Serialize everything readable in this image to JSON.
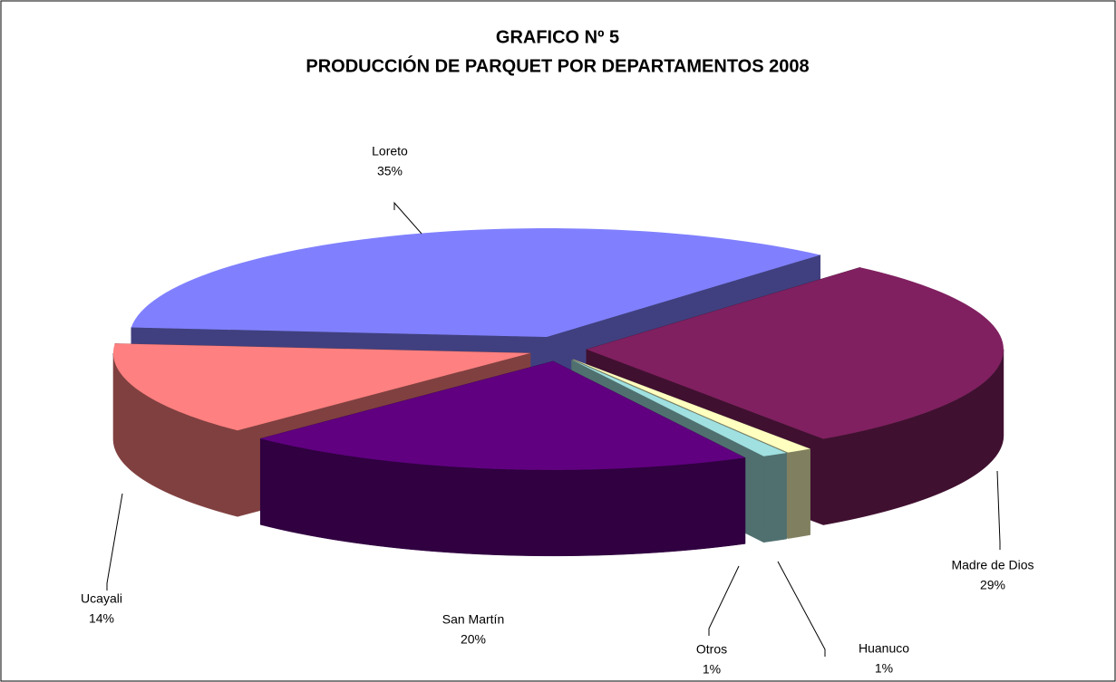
{
  "chart_data": {
    "type": "pie",
    "title": "GRAFICO Nº 5",
    "subtitle": "PRODUCCIÓN DE PARQUET POR DEPARTAMENTOS 2008",
    "categories": [
      "Loreto",
      "Madre de Dios",
      "Huanuco",
      "Otros",
      "San Martín",
      "Ucayali"
    ],
    "values": [
      35,
      29,
      1,
      1,
      20,
      14
    ],
    "value_labels": [
      "35%",
      "29%",
      "1%",
      "1%",
      "20%",
      "14%"
    ],
    "colors": [
      "#8080ff",
      "#802060",
      "#ffffc0",
      "#a0e0e0",
      "#600080",
      "#ff8080"
    ]
  }
}
